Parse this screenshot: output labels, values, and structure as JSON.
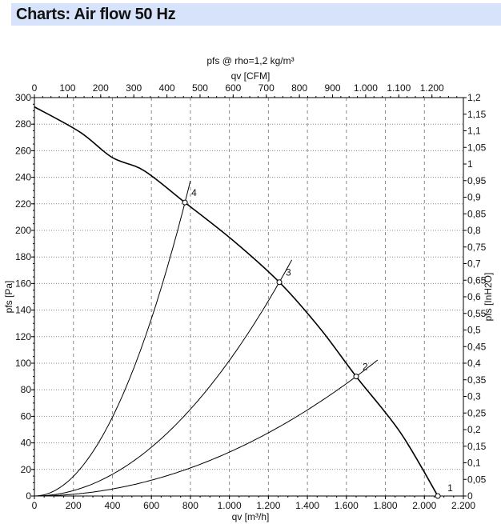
{
  "header": {
    "title": "Charts: Air flow 50 Hz"
  },
  "chart_data": {
    "type": "line",
    "title": "pfs @ rho=1,2 kg/m³",
    "xlabel": "qv [m³/h]",
    "x2label": "qv [CFM]",
    "ylabel": "pfs [Pa]",
    "y2label": "pfs [InH2O]",
    "xlim": [
      0,
      2200
    ],
    "ylim": [
      0,
      300
    ],
    "x2lim": [
      0,
      1295
    ],
    "y2lim": [
      0,
      1.2
    ],
    "xticks": [
      "0",
      "200",
      "400",
      "600",
      "800",
      "1.000",
      "1.200",
      "1.400",
      "1.600",
      "1.800",
      "2.000",
      "2.200"
    ],
    "yticks": [
      "0",
      "20",
      "40",
      "60",
      "80",
      "100",
      "120",
      "140",
      "160",
      "180",
      "200",
      "220",
      "240",
      "260",
      "280",
      "300"
    ],
    "x2ticks": [
      "0",
      "100",
      "200",
      "300",
      "400",
      "500",
      "600",
      "700",
      "800",
      "900",
      "1.000",
      "1.100",
      "1.200"
    ],
    "y2ticks": [
      "0",
      "0,05",
      "0,1",
      "0,15",
      "0,2",
      "0,25",
      "0,3",
      "0,35",
      "0,4",
      "0,45",
      "0,5",
      "0,55",
      "0,6",
      "0,65",
      "0,7",
      "0,75",
      "0,8",
      "0,85",
      "0,9",
      "0,95",
      "1",
      "1,05",
      "1,1",
      "1,15",
      "1,2"
    ],
    "grid": true,
    "fan_curve": {
      "x": [
        0,
        234,
        398,
        562,
        772,
        1014,
        1256,
        1466,
        1650,
        1876,
        2069
      ],
      "y": [
        293,
        274,
        255,
        245,
        221,
        193,
        161,
        126,
        90,
        48,
        0
      ]
    },
    "operating_points": [
      {
        "label": "1",
        "x": 2069,
        "y": 0
      },
      {
        "label": "2",
        "x": 1650,
        "y": 90
      },
      {
        "label": "3",
        "x": 1256,
        "y": 161
      },
      {
        "label": "4",
        "x": 772,
        "y": 221
      }
    ],
    "system_curves": [
      {
        "through_point": "2",
        "xmax": 1760
      },
      {
        "through_point": "3",
        "xmax": 1320
      },
      {
        "through_point": "4",
        "xmax": 800
      }
    ]
  }
}
